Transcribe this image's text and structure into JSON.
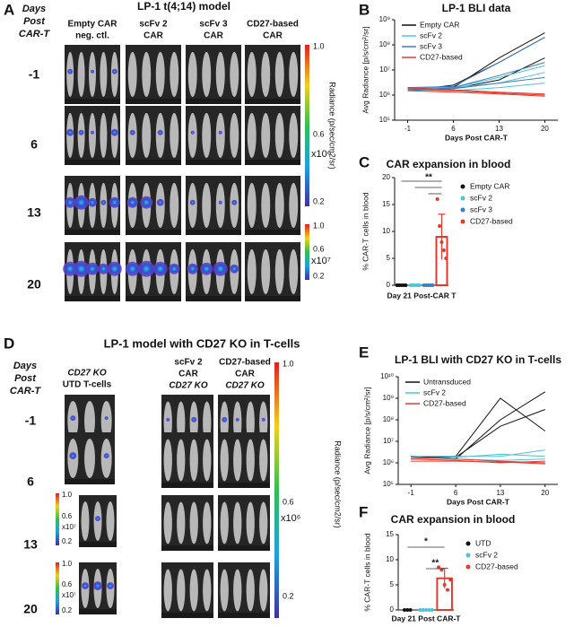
{
  "panel_labels": [
    "A",
    "B",
    "C",
    "D",
    "E",
    "F"
  ],
  "panel_a": {
    "title": "LP-1 t(4;14) model",
    "row_header": [
      "Days",
      "Post",
      "CAR-T"
    ],
    "columns": [
      [
        "Empty CAR",
        "neg. ctl."
      ],
      [
        "scFv 2",
        "CAR"
      ],
      [
        "scFv 3",
        "CAR"
      ],
      [
        "CD27-based",
        "CAR"
      ]
    ],
    "rows": [
      "-1",
      "6",
      "13",
      "20"
    ],
    "colorbar_label": "Radiance (p/sec/cm2/sr)",
    "colorbars": [
      {
        "ticks": [
          "1.0",
          "0.6",
          "0.2"
        ],
        "unit": "x10⁶"
      },
      {
        "ticks": [
          "1.0",
          "0.6",
          "0.2"
        ],
        "unit": "x10⁷"
      }
    ]
  },
  "panel_d": {
    "title": "LP-1 model with CD27 KO in T-cells",
    "row_header": [
      "Days",
      "Post",
      "CAR-T"
    ],
    "columns": [
      [
        "CD27 KO",
        "UTD T-cells"
      ],
      [
        "scFv 2",
        "CAR",
        "CD27 KO"
      ],
      [
        "CD27-based",
        "CAR",
        "CD27 KO"
      ]
    ],
    "rows": [
      "-1",
      "6",
      "13",
      "20"
    ],
    "colorbar_label": "Radiance (p/sec/cm2/sr)",
    "colorbars": [
      {
        "ticks": [
          "1.0",
          "0.6",
          "0.2"
        ],
        "unit": "x10⁶"
      },
      {
        "ticks": [
          "1.0",
          "0.6",
          "0.2"
        ],
        "unit": "x10⁷"
      },
      {
        "ticks": [
          "1.0",
          "0.6",
          "0.2"
        ],
        "unit": "x10⁷"
      }
    ]
  },
  "chart_data": [
    {
      "type": "line",
      "title": "LP-1 BLI data",
      "xlabel": "Days Post CAR-T",
      "ylabel": "Avg Radiance [p/s/cm²/sr]",
      "x": [
        -1,
        6,
        13,
        20
      ],
      "xlim": [
        -3,
        22
      ],
      "xticks": [
        -1,
        6,
        13,
        20
      ],
      "log": true,
      "legend": "upper left",
      "ylim": [
        100000,
        1000000000
      ],
      "yticks": [
        {
          "value": 100000,
          "label": "10⁵"
        },
        {
          "value": 1000000,
          "label": "10⁶"
        },
        {
          "value": 10000000,
          "label": "10⁷"
        },
        {
          "value": 100000000,
          "label": "10⁸"
        },
        {
          "value": 1000000000,
          "label": "10⁹"
        }
      ],
      "series": [
        {
          "name": "Empty CAR",
          "color": "#111111",
          "values": [
            [
              2000000,
              2000000,
              30000000,
              300000000
            ],
            [
              1500000,
              2500000,
              20000000,
              200000000
            ],
            [
              2000000,
              1800000,
              4000000,
              30000000
            ]
          ]
        },
        {
          "name": "scFv 2",
          "color": "#4fc3d9",
          "values": [
            [
              1800000,
              2000000,
              3000000,
              8000000
            ],
            [
              1600000,
              1500000,
              2000000,
              3000000
            ],
            [
              2000000,
              2000000,
              5000000,
              15000000
            ]
          ]
        },
        {
          "name": "scFv 3",
          "color": "#3a7fc1",
          "values": [
            [
              2000000,
              2200000,
              20000000,
              200000000
            ],
            [
              1700000,
              1800000,
              3000000,
              5000000
            ],
            [
              1500000,
              2000000,
              6000000,
              20000000
            ]
          ]
        },
        {
          "name": "CD27-based",
          "color": "#e23b2e",
          "values": [
            [
              1800000,
              1500000,
              1200000,
              1000000
            ],
            [
              1500000,
              1300000,
              1100000,
              900000
            ],
            [
              2000000,
              1600000,
              1300000,
              1100000
            ]
          ]
        }
      ]
    },
    {
      "type": "bar",
      "title": "CAR expansion in blood",
      "xlabel": "Day 21 Post-CAR T",
      "ylabel": "% CAR-T cells in blood",
      "categories": [
        "Empty CAR",
        "scFv 2",
        "scFv 3",
        "CD27-based"
      ],
      "colors": [
        "#111111",
        "#4fc3d9",
        "#3a7fc1",
        "#e23b2e"
      ],
      "values": [
        0,
        0,
        0,
        9
      ],
      "errors": [
        0,
        0,
        0,
        4.2
      ],
      "points": [
        [
          0,
          0,
          0,
          0,
          0
        ],
        [
          0,
          0,
          0,
          0,
          0
        ],
        [
          0,
          0,
          0,
          0,
          0
        ],
        [
          16,
          11,
          8,
          6.5,
          5
        ]
      ],
      "ylim": [
        0,
        20
      ],
      "yticks": [
        0,
        5,
        10,
        15,
        20
      ],
      "annotations": [
        "**"
      ]
    },
    {
      "type": "line",
      "title": "LP-1 BLI with CD27 KO in T-cells",
      "xlabel": "Days Post CAR-T",
      "ylabel": "Avg Radiance [p/s/cm²/sr]",
      "x": [
        -1,
        6,
        13,
        20
      ],
      "xlim": [
        -3,
        22
      ],
      "xticks": [
        -1,
        6,
        13,
        20
      ],
      "log": true,
      "legend": "upper left",
      "ylim": [
        100000,
        10000000000
      ],
      "yticks": [
        {
          "value": 100000,
          "label": "10⁵"
        },
        {
          "value": 1000000,
          "label": "10⁶"
        },
        {
          "value": 10000000,
          "label": "10⁷"
        },
        {
          "value": 100000000,
          "label": "10⁸"
        },
        {
          "value": 1000000000,
          "label": "10⁹"
        },
        {
          "value": 10000000000,
          "label": "10¹⁰"
        }
      ],
      "series": [
        {
          "name": "Untransduced",
          "color": "#111111",
          "values": [
            [
              2000000,
              1500000,
              100000000,
              2000000000
            ],
            [
              1500000,
              2000000,
              1000000000,
              30000000
            ],
            [
              2000000,
              1800000,
              50000000,
              300000000
            ]
          ]
        },
        {
          "name": "scFv 2",
          "color": "#4fc3d9",
          "values": [
            [
              2000000,
              2000000,
              2000000,
              4000000
            ],
            [
              1500000,
              1800000,
              2500000,
              2000000
            ],
            [
              1800000,
              1500000,
              1300000,
              1500000
            ]
          ]
        },
        {
          "name": "CD27-based",
          "color": "#e23b2e",
          "values": [
            [
              1500000,
              1300000,
              1000000,
              1200000
            ],
            [
              1200000,
              1200000,
              1100000,
              900000
            ],
            [
              1800000,
              1500000,
              1200000,
              1000000
            ]
          ]
        }
      ]
    },
    {
      "type": "bar",
      "title": "CAR expansion in blood",
      "xlabel": "Day 21 Post CAR-T",
      "ylabel": "% CAR-T cells in blood",
      "categories": [
        "UTD",
        "scFv 2",
        "CD27-based"
      ],
      "colors": [
        "#111111",
        "#4fc3d9",
        "#e23b2e"
      ],
      "values": [
        0,
        0,
        6.3
      ],
      "errors": [
        0,
        0,
        2
      ],
      "points": [
        [
          0,
          0,
          0
        ],
        [
          0,
          0,
          0,
          0,
          0
        ],
        [
          8.5,
          8,
          5,
          4,
          6
        ]
      ],
      "ylim": [
        0,
        15
      ],
      "yticks": [
        0,
        5,
        10,
        15
      ],
      "annotations": [
        "*",
        "**"
      ]
    }
  ]
}
